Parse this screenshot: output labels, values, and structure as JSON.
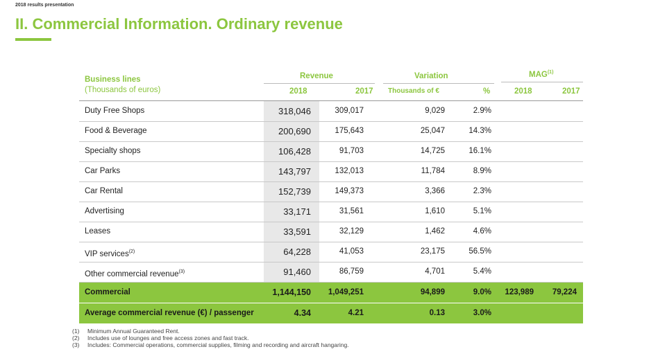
{
  "header_label": "2018 results presentation",
  "title": "II. Commercial Information. Ordinary revenue",
  "table": {
    "business_lines_label": "Business lines",
    "units_label": "(Thousands of euros)",
    "revenue_label": "Revenue",
    "variation_label": "Variation",
    "mag_label": "MAG",
    "mag_sup": "(1)",
    "col_2018": "2018",
    "col_2017": "2017",
    "col_thousands": "Thousands of €",
    "col_pct": "%",
    "mag_2018": "2018",
    "mag_2017": "2017",
    "rows": [
      {
        "label": "Duty Free Shops",
        "sup": "",
        "r2018": "318,046",
        "r2017": "309,017",
        "var": "9,029",
        "pct": "2.9%"
      },
      {
        "label": "Food & Beverage",
        "sup": "",
        "r2018": "200,690",
        "r2017": "175,643",
        "var": "25,047",
        "pct": "14.3%"
      },
      {
        "label": "Specialty shops",
        "sup": "",
        "r2018": "106,428",
        "r2017": "91,703",
        "var": "14,725",
        "pct": "16.1%"
      },
      {
        "label": "Car Parks",
        "sup": "",
        "r2018": "143,797",
        "r2017": "132,013",
        "var": "11,784",
        "pct": "8.9%"
      },
      {
        "label": "Car Rental",
        "sup": "",
        "r2018": "152,739",
        "r2017": "149,373",
        "var": "3,366",
        "pct": "2.3%"
      },
      {
        "label": "Advertising",
        "sup": "",
        "r2018": "33,171",
        "r2017": "31,561",
        "var": "1,610",
        "pct": "5.1%"
      },
      {
        "label": "Leases",
        "sup": "",
        "r2018": "33,591",
        "r2017": "32,129",
        "var": "1,462",
        "pct": "4.6%"
      },
      {
        "label": "VIP services",
        "sup": "(2)",
        "r2018": "64,228",
        "r2017": "41,053",
        "var": "23,175",
        "pct": "56.5%"
      },
      {
        "label": "Other commercial revenue",
        "sup": "(3)",
        "r2018": "91,460",
        "r2017": "86,759",
        "var": "4,701",
        "pct": "5.4%"
      }
    ],
    "commercial": {
      "label": "Commercial",
      "r2018": "1,144,150",
      "r2017": "1,049,251",
      "var": "94,899",
      "pct": "9.0%",
      "mag2018": "123,989",
      "mag2017": "79,224"
    },
    "average": {
      "label": "Average commercial revenue (€) / passenger",
      "r2018": "4.34",
      "r2017": "4.21",
      "var": "0.13",
      "pct": "3.0%"
    }
  },
  "notes": [
    {
      "num": "(1)",
      "text": "Minimum Annual Guaranteed Rent."
    },
    {
      "num": "(2)",
      "text": "Includes use of lounges and free access zones and fast track."
    },
    {
      "num": "(3)",
      "text": "Includes: Commercial operations, commercial supplies, filming and recording and aircraft hangaring."
    }
  ],
  "colors": {
    "accent": "#8cc63f"
  }
}
